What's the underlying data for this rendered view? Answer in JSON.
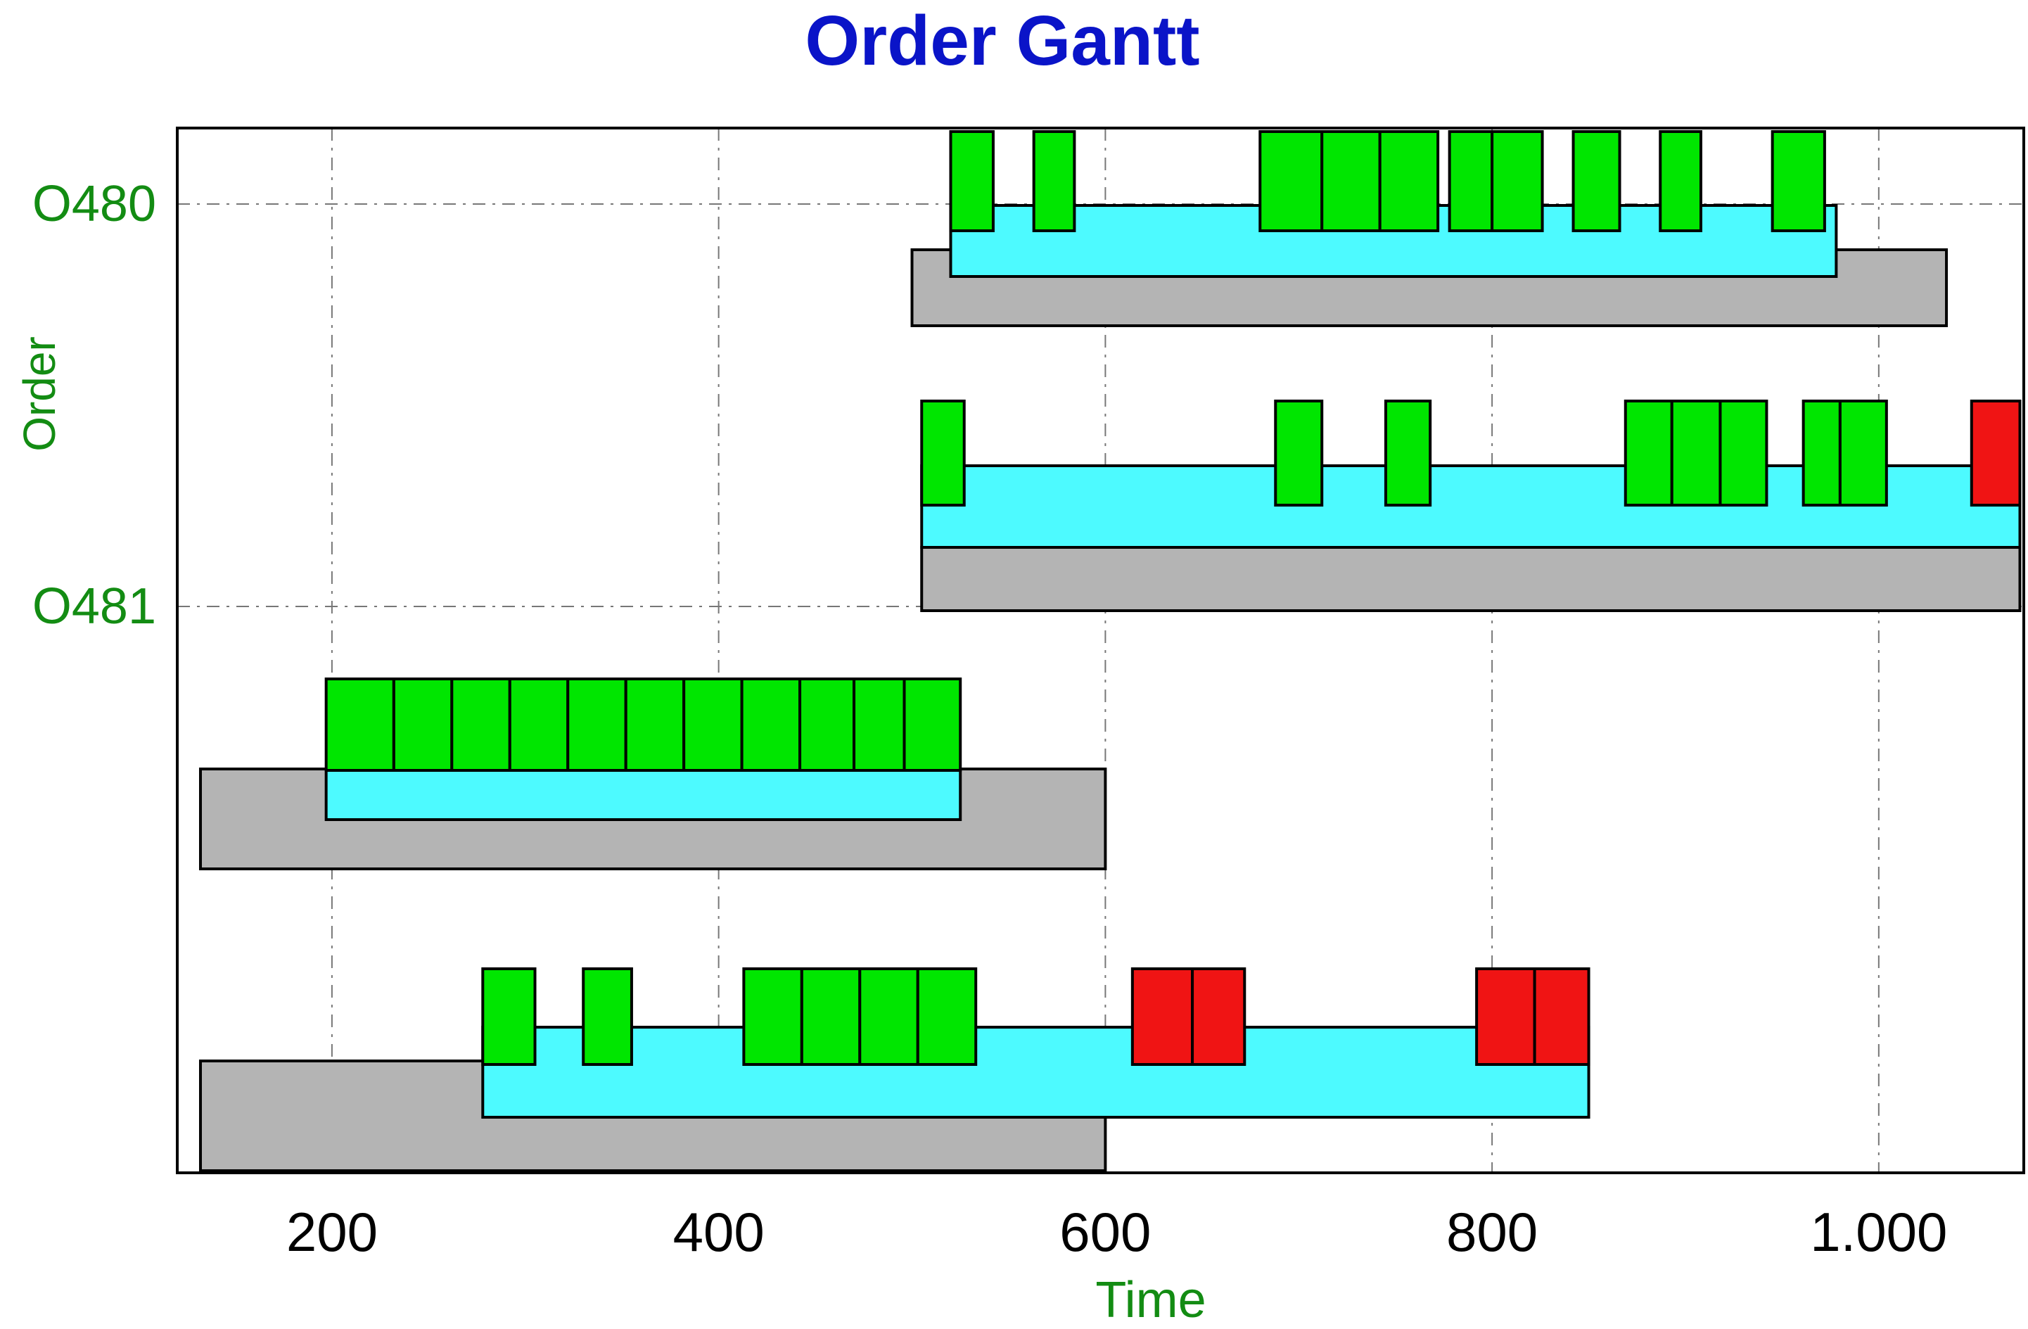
{
  "chart_data": {
    "type": "gantt",
    "title": "Order Gantt",
    "xlabel": "Time",
    "ylabel": "Order",
    "xlim": [
      120,
      1075
    ],
    "xticks": [
      200,
      400,
      600,
      800,
      1000
    ],
    "xtick_labels": [
      "200",
      "400",
      "600",
      "800",
      "1.000"
    ],
    "grid": true,
    "colors": {
      "plan": "#b4b4b4",
      "actual": "#4dfaff",
      "operation_ok": "#00e600",
      "operation_late": "#f01414",
      "title": "#0a14c8",
      "axis_text": "#138c13",
      "grid": "#777777"
    },
    "rows": [
      {
        "label": "O480",
        "plan": [
          500,
          1035
        ],
        "actual": [
          520,
          978
        ],
        "operations": [
          {
            "start": 520,
            "end": 542,
            "status": "ok"
          },
          {
            "start": 563,
            "end": 584,
            "status": "ok"
          },
          {
            "start": 680,
            "end": 712,
            "status": "ok"
          },
          {
            "start": 712,
            "end": 742,
            "status": "ok"
          },
          {
            "start": 742,
            "end": 772,
            "status": "ok"
          },
          {
            "start": 778,
            "end": 800,
            "status": "ok"
          },
          {
            "start": 800,
            "end": 826,
            "status": "ok"
          },
          {
            "start": 842,
            "end": 866,
            "status": "ok"
          },
          {
            "start": 887,
            "end": 908,
            "status": "ok"
          },
          {
            "start": 945,
            "end": 972,
            "status": "ok"
          }
        ]
      },
      {
        "label": "O481",
        "plan": [
          505,
          1073
        ],
        "actual": [
          505,
          1073
        ],
        "operations": [
          {
            "start": 505,
            "end": 527,
            "status": "ok"
          },
          {
            "start": 688,
            "end": 712,
            "status": "ok"
          },
          {
            "start": 745,
            "end": 768,
            "status": "ok"
          },
          {
            "start": 869,
            "end": 893,
            "status": "ok"
          },
          {
            "start": 893,
            "end": 918,
            "status": "ok"
          },
          {
            "start": 918,
            "end": 942,
            "status": "ok"
          },
          {
            "start": 961,
            "end": 980,
            "status": "ok"
          },
          {
            "start": 980,
            "end": 1004,
            "status": "ok"
          },
          {
            "start": 1048,
            "end": 1073,
            "status": "late"
          }
        ]
      },
      {
        "label": "",
        "plan": [
          132,
          600
        ],
        "actual": [
          197,
          525
        ],
        "operations": [
          {
            "start": 197,
            "end": 232,
            "status": "ok"
          },
          {
            "start": 232,
            "end": 262,
            "status": "ok"
          },
          {
            "start": 262,
            "end": 292,
            "status": "ok"
          },
          {
            "start": 292,
            "end": 322,
            "status": "ok"
          },
          {
            "start": 322,
            "end": 352,
            "status": "ok"
          },
          {
            "start": 352,
            "end": 382,
            "status": "ok"
          },
          {
            "start": 382,
            "end": 412,
            "status": "ok"
          },
          {
            "start": 412,
            "end": 442,
            "status": "ok"
          },
          {
            "start": 442,
            "end": 470,
            "status": "ok"
          },
          {
            "start": 470,
            "end": 496,
            "status": "ok"
          },
          {
            "start": 496,
            "end": 525,
            "status": "ok"
          }
        ]
      },
      {
        "label": "",
        "plan": [
          132,
          600
        ],
        "actual": [
          278,
          850
        ],
        "operations": [
          {
            "start": 278,
            "end": 305,
            "status": "ok"
          },
          {
            "start": 330,
            "end": 355,
            "status": "ok"
          },
          {
            "start": 413,
            "end": 443,
            "status": "ok"
          },
          {
            "start": 443,
            "end": 473,
            "status": "ok"
          },
          {
            "start": 473,
            "end": 503,
            "status": "ok"
          },
          {
            "start": 503,
            "end": 533,
            "status": "ok"
          },
          {
            "start": 614,
            "end": 645,
            "status": "late"
          },
          {
            "start": 645,
            "end": 672,
            "status": "late"
          },
          {
            "start": 792,
            "end": 822,
            "status": "late"
          },
          {
            "start": 822,
            "end": 850,
            "status": "late"
          }
        ]
      }
    ]
  }
}
